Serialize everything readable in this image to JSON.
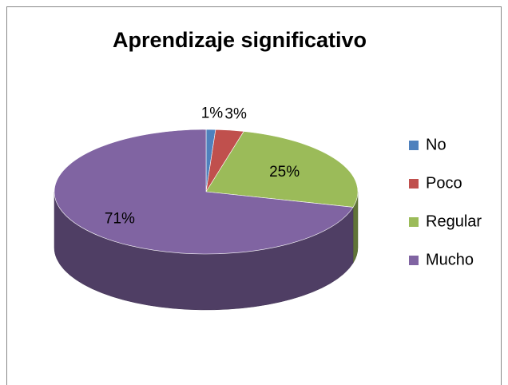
{
  "chart_data": {
    "type": "pie",
    "title": "Aprendizaje significativo",
    "categories": [
      "No",
      "Poco",
      "Regular",
      "Mucho"
    ],
    "values": [
      1,
      3,
      25,
      71
    ],
    "value_labels": [
      "1%",
      "3%",
      "25%",
      "71%"
    ],
    "colors": [
      "#4f81bd",
      "#c0504d",
      "#9bbb59",
      "#8064a2"
    ],
    "legend": "right",
    "three_d": true
  }
}
